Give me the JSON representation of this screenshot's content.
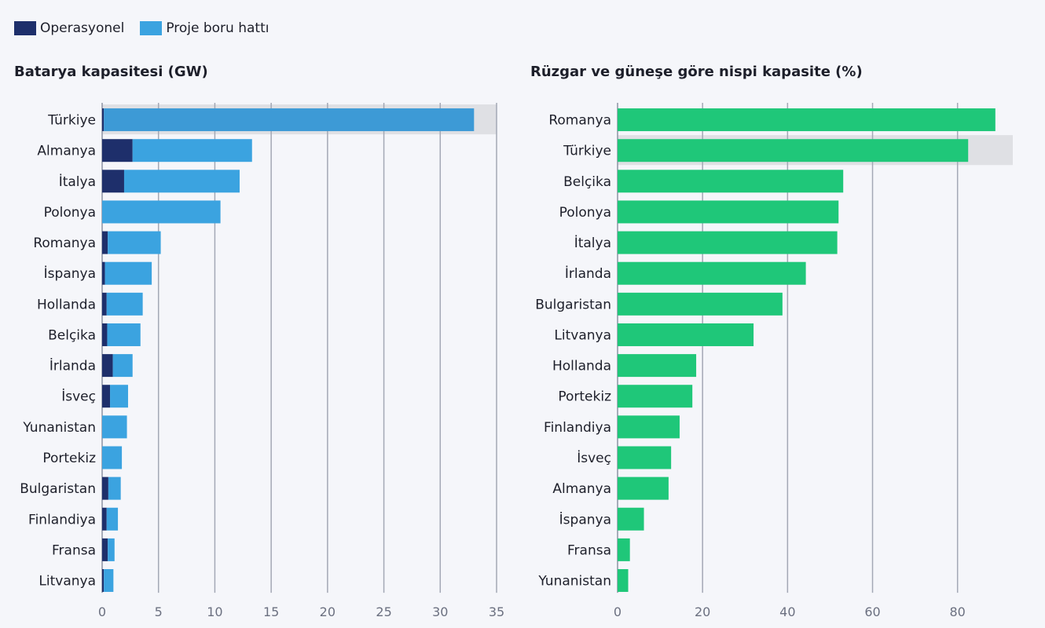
{
  "legend": [
    {
      "name": "Operasyonel",
      "color": "#1e2f6b"
    },
    {
      "name": "Proje boru hattı",
      "color": "#3ba3e0"
    }
  ],
  "highlight_category": "Türkiye",
  "chart_data": [
    {
      "type": "bar",
      "orientation": "horizontal",
      "stacked": true,
      "title": "Batarya kapasitesi (GW)",
      "categories": [
        "Türkiye",
        "Almanya",
        "İtalya",
        "Polonya",
        "Romanya",
        "İspanya",
        "Hollanda",
        "Belçika",
        "İrlanda",
        "İsveç",
        "Yunanistan",
        "Portekiz",
        "Bulgaristan",
        "Finlandiya",
        "Fransa",
        "Litvanya"
      ],
      "series": [
        {
          "name": "Operasyonel",
          "color": "#1e2f6b",
          "values": [
            0.15,
            2.7,
            1.95,
            0,
            0.5,
            0.25,
            0.4,
            0.45,
            0.95,
            0.7,
            0,
            0,
            0.55,
            0.4,
            0.5,
            0.15
          ]
        },
        {
          "name": "Proje boru hattı",
          "color": "#3ba3e0",
          "values": [
            32.85,
            10.6,
            10.25,
            10.5,
            4.7,
            4.15,
            3.2,
            2.95,
            1.75,
            1.6,
            2.2,
            1.75,
            1.1,
            1.0,
            0.6,
            0.85
          ]
        }
      ],
      "xlim": [
        0,
        35
      ],
      "xticks": [
        0,
        5,
        10,
        15,
        20,
        25,
        30,
        35
      ],
      "grid": true
    },
    {
      "type": "bar",
      "orientation": "horizontal",
      "title": "Rüzgar ve güneşe göre nispi kapasite (%)",
      "categories": [
        "Romanya",
        "Türkiye",
        "Belçika",
        "Polonya",
        "İtalya",
        "İrlanda",
        "Bulgaristan",
        "Litvanya",
        "Hollanda",
        "Portekiz",
        "Finlandiya",
        "İsveç",
        "Almanya",
        "İspanya",
        "Fransa",
        "Yunanistan"
      ],
      "series": [
        {
          "color": "#1fc779",
          "values": [
            88.9,
            82.5,
            53.1,
            52.0,
            51.7,
            44.3,
            38.8,
            32.0,
            18.5,
            17.6,
            14.6,
            12.6,
            12.0,
            6.2,
            2.9,
            2.5
          ]
        }
      ],
      "xlim": [
        0,
        93
      ],
      "xticks": [
        0,
        20,
        40,
        60,
        80
      ],
      "grid": true
    }
  ]
}
